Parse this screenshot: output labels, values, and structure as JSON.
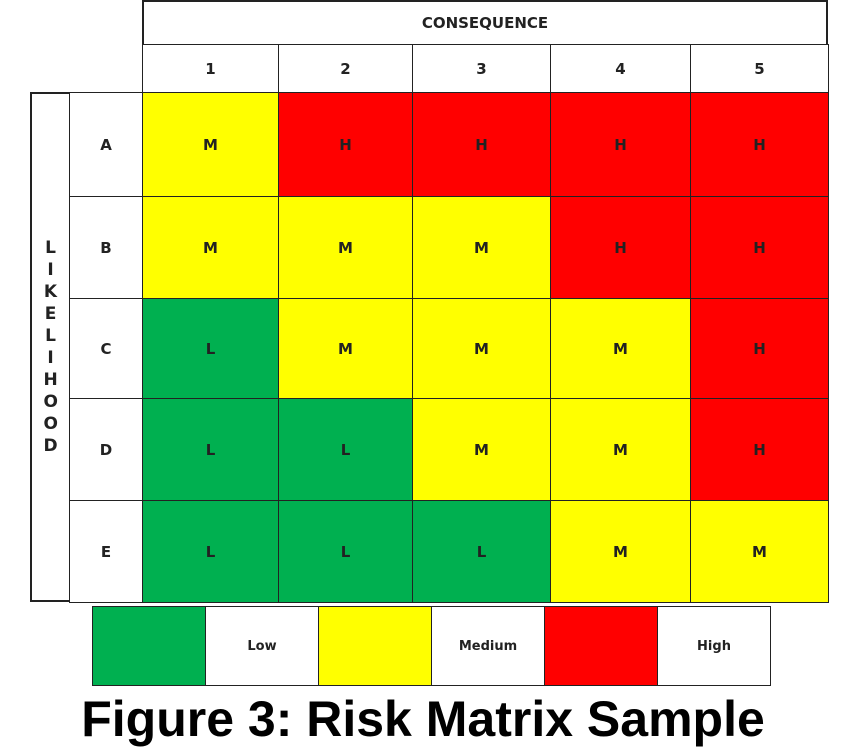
{
  "matrix": {
    "column_header": "CONSEQUENCE",
    "row_header": "LIKELIHOOD",
    "columns": [
      "1",
      "2",
      "3",
      "4",
      "5"
    ],
    "rows": [
      {
        "label": "A",
        "cells": [
          {
            "text": "M",
            "color": "#ffff00"
          },
          {
            "text": "H",
            "color": "#ff0000"
          },
          {
            "text": "H",
            "color": "#ff0000"
          },
          {
            "text": "H",
            "color": "#ff0000"
          },
          {
            "text": "H",
            "color": "#ff0000"
          }
        ]
      },
      {
        "label": "B",
        "cells": [
          {
            "text": "M",
            "color": "#ffff00"
          },
          {
            "text": "M",
            "color": "#ffff00"
          },
          {
            "text": "M",
            "color": "#ffff00"
          },
          {
            "text": "H",
            "color": "#ff0000"
          },
          {
            "text": "H",
            "color": "#ff0000"
          }
        ]
      },
      {
        "label": "C",
        "cells": [
          {
            "text": "L",
            "color": "#00b050"
          },
          {
            "text": "M",
            "color": "#ffff00"
          },
          {
            "text": "M",
            "color": "#ffff00"
          },
          {
            "text": "M",
            "color": "#ffff00"
          },
          {
            "text": "H",
            "color": "#ff0000"
          }
        ]
      },
      {
        "label": "D",
        "cells": [
          {
            "text": "L",
            "color": "#00b050"
          },
          {
            "text": "L",
            "color": "#00b050"
          },
          {
            "text": "M",
            "color": "#ffff00"
          },
          {
            "text": "M",
            "color": "#ffff00"
          },
          {
            "text": "H",
            "color": "#ff0000"
          }
        ]
      },
      {
        "label": "E",
        "cells": [
          {
            "text": "L",
            "color": "#00b050"
          },
          {
            "text": "L",
            "color": "#00b050"
          },
          {
            "text": "L",
            "color": "#00b050"
          },
          {
            "text": "M",
            "color": "#ffff00"
          },
          {
            "text": "M",
            "color": "#ffff00"
          }
        ]
      }
    ]
  },
  "legend": [
    {
      "label": "Low",
      "color": "#00b050"
    },
    {
      "label": "Medium",
      "color": "#ffff00"
    },
    {
      "label": "High",
      "color": "#ff0000"
    }
  ],
  "caption": "Figure 3: Risk Matrix Sample"
}
